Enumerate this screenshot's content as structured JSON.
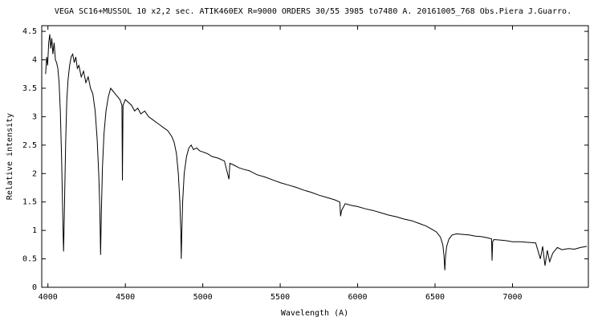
{
  "chart_data": {
    "type": "line",
    "title": "VEGA  SC16+MUSSOL 10 x2,2 sec. ATIK460EX  R=9000  ORDERS 30/55  3985 to7480 A. 20161005_768 Obs.Piera  J.Guarro.",
    "x_label": "Wavelength (A)",
    "y_label": "Relative intensity",
    "x": [
      3985,
      3992,
      3998,
      4005,
      4012,
      4018,
      4025,
      4032,
      4040,
      4048,
      4056,
      4064,
      4072,
      4080,
      4088,
      4094,
      4098,
      4101,
      4104,
      4108,
      4115,
      4122,
      4130,
      4140,
      4150,
      4160,
      4170,
      4180,
      4190,
      4200,
      4215,
      4230,
      4245,
      4260,
      4275,
      4290,
      4305,
      4318,
      4328,
      4335,
      4340,
      4345,
      4352,
      4362,
      4375,
      4390,
      4405,
      4420,
      4435,
      4450,
      4465,
      4478,
      4481,
      4485,
      4500,
      4520,
      4540,
      4560,
      4580,
      4600,
      4625,
      4650,
      4675,
      4700,
      4725,
      4750,
      4775,
      4800,
      4815,
      4830,
      4842,
      4852,
      4858,
      4861,
      4864,
      4870,
      4880,
      4895,
      4910,
      4925,
      4940,
      4960,
      4980,
      5000,
      5030,
      5060,
      5100,
      5140,
      5169,
      5175,
      5200,
      5235,
      5270,
      5300,
      5350,
      5400,
      5450,
      5500,
      5550,
      5600,
      5650,
      5700,
      5750,
      5800,
      5850,
      5885,
      5890,
      5896,
      5920,
      5960,
      6000,
      6050,
      6100,
      6150,
      6200,
      6250,
      6300,
      6350,
      6400,
      6440,
      6480,
      6510,
      6535,
      6550,
      6558,
      6563,
      6568,
      6575,
      6590,
      6610,
      6640,
      6680,
      6720,
      6760,
      6800,
      6840,
      6865,
      6868,
      6872,
      6880,
      6920,
      6960,
      7000,
      7050,
      7100,
      7150,
      7180,
      7195,
      7210,
      7225,
      7240,
      7260,
      7290,
      7320,
      7360,
      7400,
      7440,
      7480
    ],
    "series": [
      {
        "color": "#000000",
        "values": [
          3.75,
          4.05,
          3.9,
          4.3,
          4.45,
          4.2,
          4.38,
          4.1,
          4.3,
          4.0,
          3.95,
          3.85,
          3.6,
          3.1,
          2.3,
          1.5,
          0.95,
          0.63,
          1.0,
          1.6,
          2.6,
          3.3,
          3.65,
          3.9,
          4.05,
          4.1,
          3.95,
          4.05,
          3.85,
          3.9,
          3.7,
          3.8,
          3.6,
          3.7,
          3.5,
          3.4,
          3.1,
          2.6,
          2.0,
          1.4,
          0.57,
          1.3,
          2.1,
          2.7,
          3.1,
          3.35,
          3.5,
          3.45,
          3.4,
          3.35,
          3.3,
          3.2,
          1.88,
          3.2,
          3.3,
          3.25,
          3.2,
          3.1,
          3.15,
          3.05,
          3.1,
          3.0,
          2.95,
          2.9,
          2.85,
          2.8,
          2.75,
          2.65,
          2.55,
          2.35,
          2.0,
          1.5,
          1.0,
          0.5,
          0.9,
          1.5,
          2.0,
          2.3,
          2.45,
          2.5,
          2.42,
          2.45,
          2.4,
          2.38,
          2.35,
          2.3,
          2.27,
          2.22,
          1.9,
          2.18,
          2.15,
          2.1,
          2.07,
          2.05,
          1.98,
          1.94,
          1.89,
          1.84,
          1.8,
          1.76,
          1.71,
          1.67,
          1.62,
          1.58,
          1.54,
          1.5,
          1.25,
          1.35,
          1.47,
          1.44,
          1.42,
          1.38,
          1.35,
          1.31,
          1.27,
          1.24,
          1.2,
          1.17,
          1.12,
          1.08,
          1.02,
          0.97,
          0.88,
          0.75,
          0.55,
          0.3,
          0.55,
          0.72,
          0.85,
          0.92,
          0.94,
          0.93,
          0.92,
          0.9,
          0.89,
          0.87,
          0.85,
          0.47,
          0.8,
          0.84,
          0.83,
          0.82,
          0.8,
          0.8,
          0.79,
          0.78,
          0.5,
          0.72,
          0.38,
          0.65,
          0.45,
          0.6,
          0.7,
          0.66,
          0.68,
          0.67,
          0.7,
          0.72
        ]
      }
    ],
    "xlim": [
      3960,
      7490
    ],
    "xticks": [
      4000,
      4500,
      5000,
      5500,
      6000,
      6500,
      7000
    ],
    "ylim": [
      0,
      4.6
    ],
    "yticks": [
      0,
      0.5,
      1,
      1.5,
      2,
      2.5,
      3,
      3.5,
      4,
      4.5
    ]
  }
}
